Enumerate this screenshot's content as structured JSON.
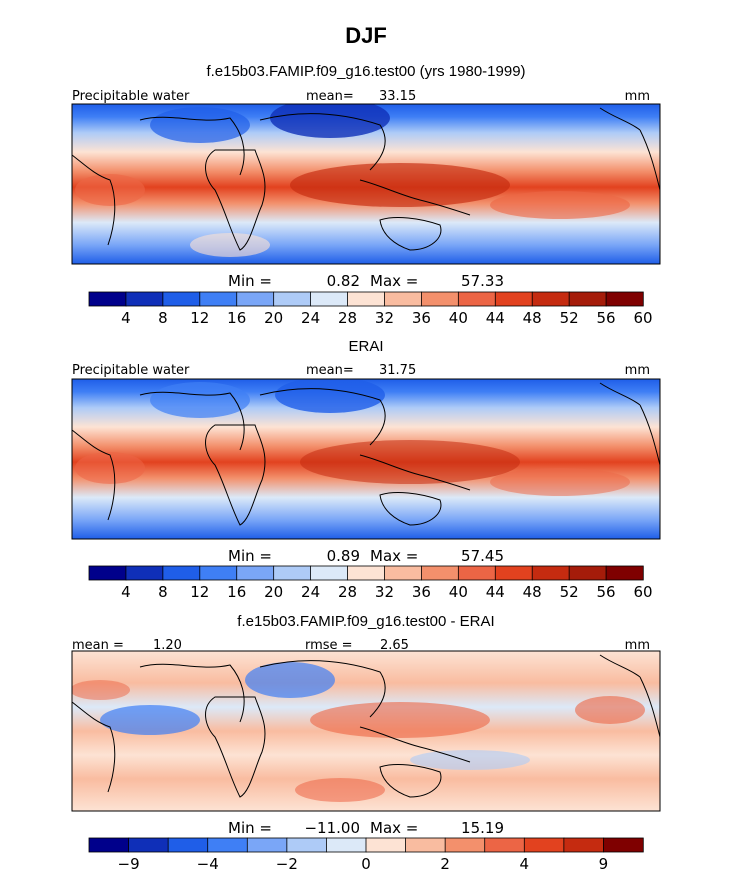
{
  "figure": {
    "season": "DJF"
  },
  "palettes": {
    "sequential": [
      "#00008b",
      "#0f2fb8",
      "#1f5ee8",
      "#3f7ff5",
      "#7aa6f7",
      "#aecbf7",
      "#dce9f8",
      "#fde3d4",
      "#f9bca0",
      "#f3906c",
      "#ec6545",
      "#e2421f",
      "#c52b10",
      "#a51c0a",
      "#7f0000"
    ],
    "diverging": [
      "#00008b",
      "#0f2fb8",
      "#1f5ee8",
      "#3f7ff5",
      "#7aa6f7",
      "#aecbf7",
      "#dce9f8",
      "#fde3d4",
      "#f9bca0",
      "#f3906c",
      "#ec6545",
      "#e2421f",
      "#c52b10",
      "#7f0000"
    ]
  },
  "chart_data": [
    {
      "type": "heatmap",
      "title": "f.e15b03.FAMIP.f09_g16.test00 (yrs 1980-1999)",
      "variable": "Precipitable water",
      "units": "mm",
      "mean_label": "mean=",
      "mean": "33.15",
      "min_label": "Min =",
      "min": "0.82",
      "max_label": "Max =",
      "max": "57.33",
      "colorbar_levels": [
        4,
        8,
        12,
        16,
        20,
        24,
        28,
        32,
        36,
        40,
        44,
        48,
        52,
        56,
        60
      ],
      "colorbar_tick_labels": [
        "4",
        "8",
        "12",
        "16",
        "20",
        "24",
        "28",
        "32",
        "36",
        "40",
        "44",
        "48",
        "52",
        "56",
        "60"
      ],
      "palette": "sequential"
    },
    {
      "type": "heatmap",
      "title": "ERAI",
      "variable": "Precipitable water",
      "units": "mm",
      "mean_label": "mean=",
      "mean": "31.75",
      "min_label": "Min =",
      "min": "0.89",
      "max_label": "Max =",
      "max": "57.45",
      "colorbar_levels": [
        4,
        8,
        12,
        16,
        20,
        24,
        28,
        32,
        36,
        40,
        44,
        48,
        52,
        56,
        60
      ],
      "colorbar_tick_labels": [
        "4",
        "8",
        "12",
        "16",
        "20",
        "24",
        "28",
        "32",
        "36",
        "40",
        "44",
        "48",
        "52",
        "56",
        "60"
      ],
      "palette": "sequential"
    },
    {
      "type": "heatmap",
      "title": "f.e15b03.FAMIP.f09_g16.test00 - ERAI",
      "variable": "",
      "units": "mm",
      "mean_label": "mean =",
      "mean": "1.20",
      "rmse_label": "rmse =",
      "rmse": "2.65",
      "min_label": "Min =",
      "min": "−11.00",
      "max_label": "Max =",
      "max": "15.19",
      "colorbar_levels": [
        -9,
        -6,
        -4,
        -3,
        -2,
        -1,
        0,
        1,
        2,
        3,
        4,
        6,
        9
      ],
      "colorbar_tick_labels": [
        "−9",
        "",
        "−4",
        "",
        "−2",
        "",
        "0",
        "",
        "2",
        "",
        "4",
        "",
        "9"
      ],
      "palette": "diverging"
    }
  ]
}
